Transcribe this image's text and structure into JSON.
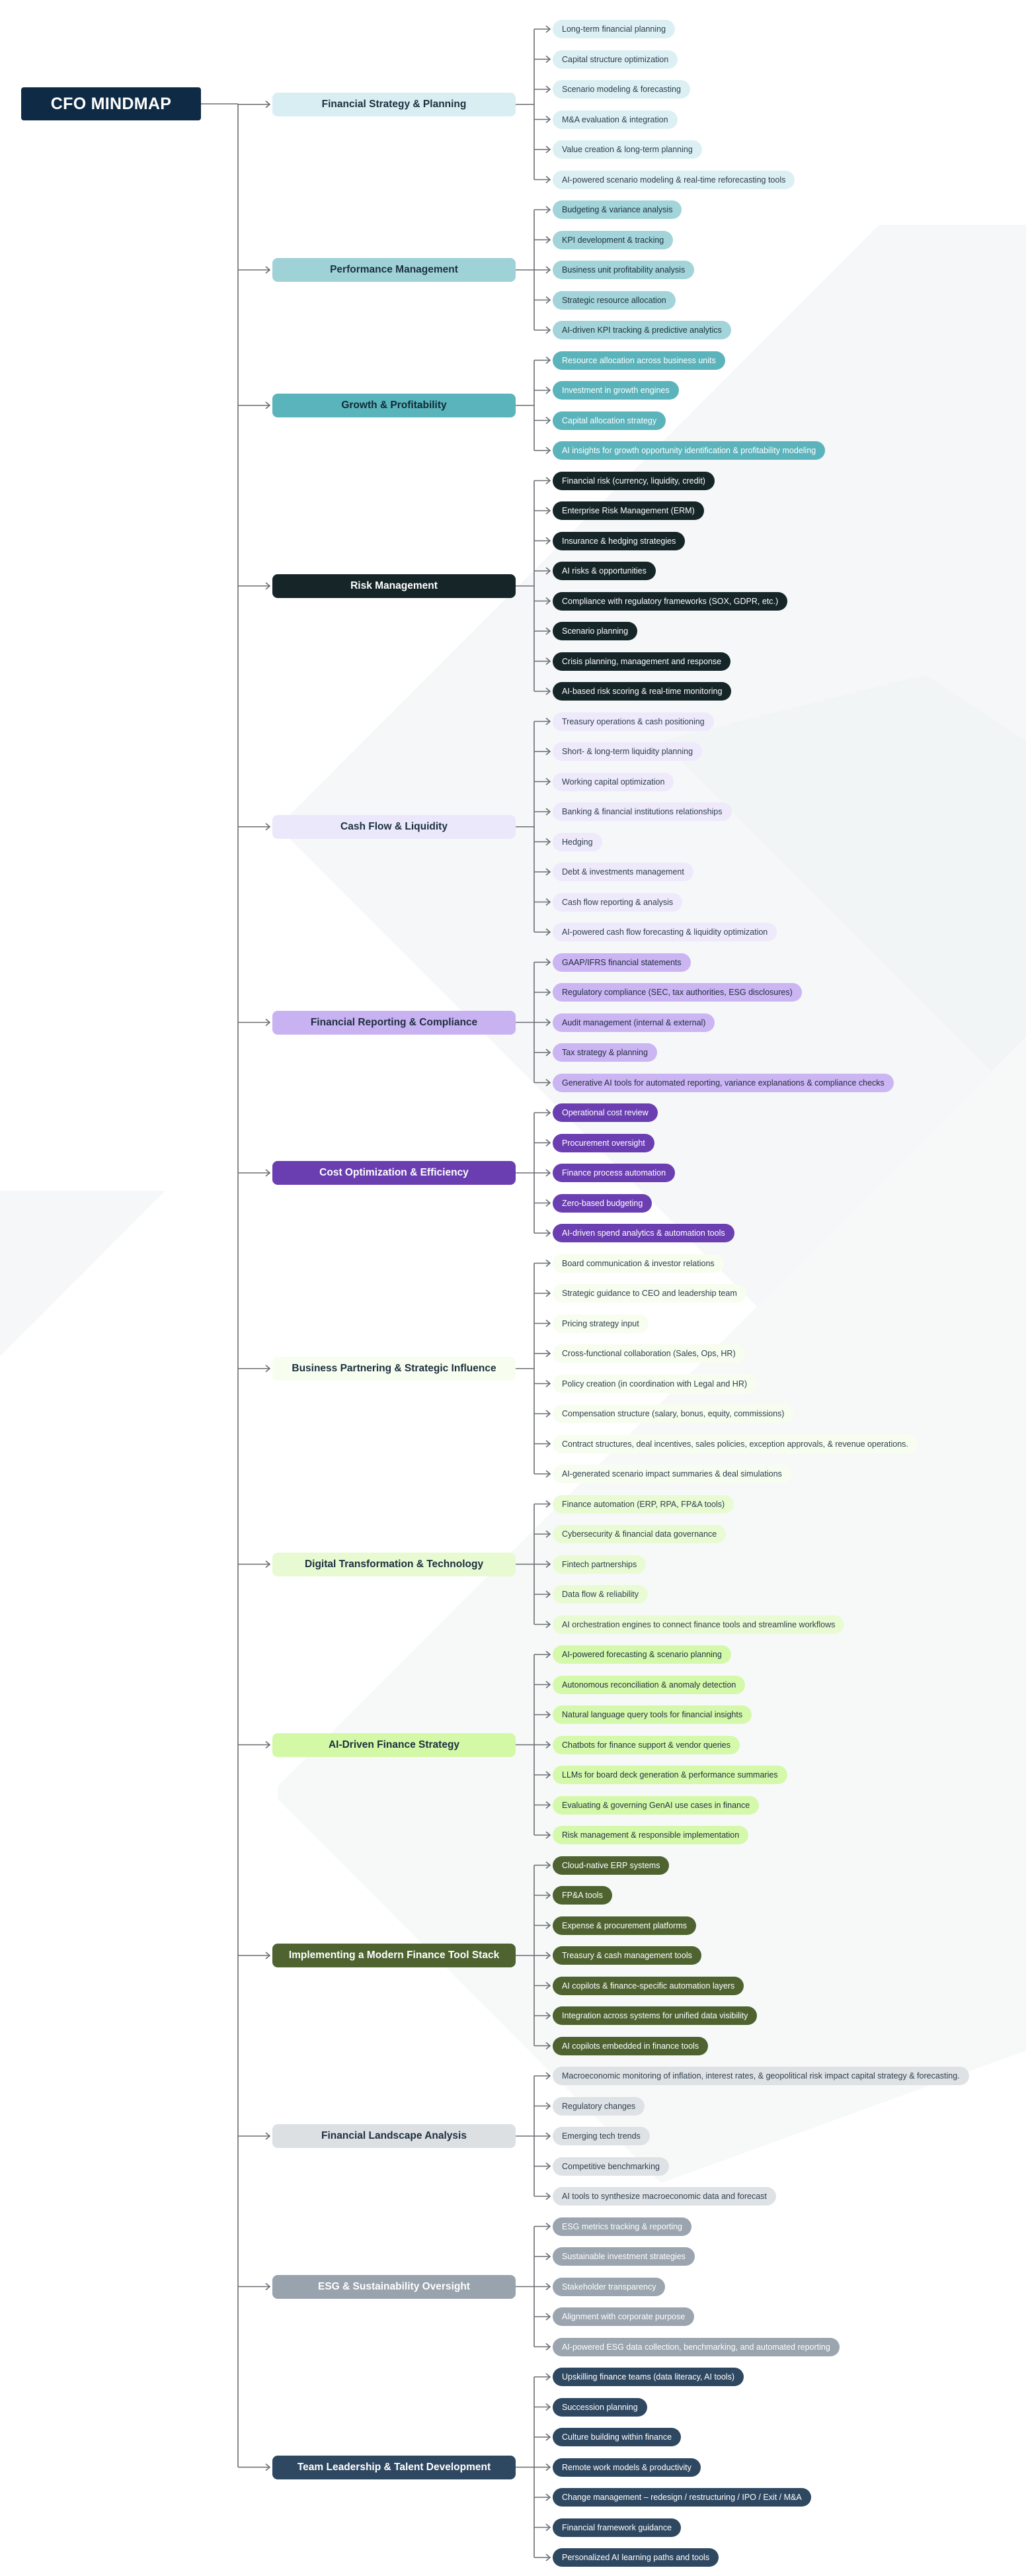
{
  "title": "CFO MINDMAP",
  "branches": [
    {
      "label": "Financial Strategy & Planning",
      "bg": "#d9eef3",
      "fg": "#1c2f3f",
      "ibg": "#dcf0f4",
      "ifg": "#2d3e4e",
      "items": [
        "Long-term financial planning",
        "Capital structure optimization",
        "Scenario modeling & forecasting",
        "M&A evaluation & integration",
        "Value creation & long-term planning",
        "AI-powered scenario modeling & real-time reforecasting tools"
      ]
    },
    {
      "label": "Performance Management",
      "bg": "#9fd2d7",
      "fg": "#1c2f3f",
      "ibg": "#a2d4d9",
      "ifg": "#1f3240",
      "items": [
        "Budgeting & variance analysis",
        "KPI development & tracking",
        "Business unit profitability analysis",
        "Strategic resource allocation",
        "AI-driven KPI tracking & predictive analytics"
      ]
    },
    {
      "label": "Growth & Profitability",
      "bg": "#5ab4bc",
      "fg": "#102a35",
      "ibg": "#5bb4bc",
      "ifg": "#ffffff",
      "items": [
        "Resource allocation across business units",
        "Investment in growth engines",
        "Capital allocation strategy",
        "AI insights for growth opportunity identification & profitability modeling"
      ]
    },
    {
      "label": "Risk Management",
      "bg": "#152528",
      "fg": "#ffffff",
      "ibg": "#152528",
      "ifg": "#ffffff",
      "items": [
        "Financial risk (currency, liquidity, credit)",
        "Enterprise Risk Management (ERM)",
        "Insurance & hedging strategies",
        "AI risks & opportunities",
        "Compliance with regulatory frameworks (SOX, GDPR, etc.)",
        "Scenario planning",
        "Crisis planning, management and response",
        "AI-based risk scoring & real-time monitoring"
      ]
    },
    {
      "label": "Cash Flow & Liquidity",
      "bg": "#ece8fb",
      "fg": "#1c2f3f",
      "ibg": "#eeeafb",
      "ifg": "#2d3e4e",
      "items": [
        "Treasury operations & cash positioning",
        "Short- & long-term liquidity planning",
        "Working capital optimization",
        "Banking & financial institutions relationships",
        "Hedging",
        "Debt & investments management",
        "Cash flow reporting & analysis",
        "AI-powered cash flow forecasting & liquidity optimization"
      ]
    },
    {
      "label": "Financial Reporting & Compliance",
      "bg": "#c9b2f2",
      "fg": "#1c2f3f",
      "ibg": "#cbb5f3",
      "ifg": "#1f2d3f",
      "items": [
        "GAAP/IFRS financial statements",
        "Regulatory compliance (SEC, tax authorities, ESG disclosures)",
        "Audit management (internal & external)",
        "Tax strategy & planning",
        "Generative AI tools for automated reporting, variance explanations & compliance checks"
      ]
    },
    {
      "label": "Cost Optimization & Efficiency",
      "bg": "#6a3eb0",
      "fg": "#ffffff",
      "ibg": "#6b3fb1",
      "ifg": "#ffffff",
      "items": [
        "Operational cost review",
        "Procurement oversight",
        "Finance process automation",
        "Zero-based budgeting",
        "AI-driven spend analytics & automation tools"
      ]
    },
    {
      "label": "Business Partnering & Strategic Influence",
      "bg": "#f7fdef",
      "fg": "#1c2f3f",
      "ibg": "#f7fdef",
      "ifg": "#2d3e4e",
      "items": [
        "Board communication & investor relations",
        "Strategic guidance to CEO and leadership team",
        "Pricing strategy input",
        "Cross-functional collaboration (Sales, Ops, HR)",
        "Policy creation (in coordination with Legal and HR)",
        "Compensation structure (salary, bonus, equity, commissions)",
        "Contract structures, deal incentives, sales policies, exception approvals, & revenue operations.",
        "AI-generated scenario impact summaries & deal simulations"
      ]
    },
    {
      "label": "Digital Transformation & Technology",
      "bg": "#e8fad1",
      "fg": "#1c2f3f",
      "ibg": "#e9fbd3",
      "ifg": "#2d3e4e",
      "items": [
        "Finance automation (ERP, RPA, FP&A tools)",
        "Cybersecurity & financial data governance",
        "Fintech partnerships",
        "Data flow & reliability",
        "AI orchestration engines to connect finance tools and streamline workflows"
      ]
    },
    {
      "label": "AI-Driven Finance Strategy",
      "bg": "#d3f9a6",
      "fg": "#1c2f3f",
      "ibg": "#d5f9aa",
      "ifg": "#1f3240",
      "items": [
        "AI-powered forecasting & scenario planning",
        "Autonomous reconciliation & anomaly detection",
        "Natural language query tools for financial insights",
        "Chatbots for finance support & vendor queries",
        "LLMs for board deck generation & performance summaries",
        "Evaluating & governing GenAI use cases in finance",
        "Risk management & responsible implementation"
      ]
    },
    {
      "label": "Implementing a Modern Finance Tool Stack",
      "bg": "#4e6330",
      "fg": "#ffffff",
      "ibg": "#4e6330",
      "ifg": "#ffffff",
      "items": [
        "Cloud-native ERP systems",
        "FP&A tools",
        "Expense & procurement platforms",
        "Treasury & cash management tools",
        "AI copilots & finance-specific automation layers",
        "Integration across systems for unified data visibility",
        "AI copilots embedded in finance tools"
      ]
    },
    {
      "label": "Financial Landscape Analysis",
      "bg": "#dde0e3",
      "fg": "#1c2f3f",
      "ibg": "#dfe2e5",
      "ifg": "#2d3e4e",
      "items": [
        "Macroeconomic monitoring of inflation, interest rates, & geopolitical risk impact capital strategy & forecasting.",
        "Regulatory changes",
        "Emerging tech trends",
        "Competitive benchmarking",
        "AI tools to synthesize macroeconomic data and forecast"
      ]
    },
    {
      "label": "ESG & Sustainability Oversight",
      "bg": "#98a3ad",
      "fg": "#ffffff",
      "ibg": "#9aa5af",
      "ifg": "#ffffff",
      "items": [
        "ESG metrics tracking & reporting",
        "Sustainable investment strategies",
        "Stakeholder transparency",
        "Alignment with corporate purpose",
        "AI-powered ESG data collection, benchmarking, and automated reporting"
      ]
    },
    {
      "label": "Team Leadership & Talent Development",
      "bg": "#2f4861",
      "fg": "#ffffff",
      "ibg": "#2f4861",
      "ifg": "#ffffff",
      "items": [
        "Upskilling finance teams (data literacy, AI tools)",
        "Succession planning",
        "Culture building within finance",
        "Remote work models & productivity",
        "Change management – redesign / restructuring / IPO / Exit / M&A",
        "Financial framework guidance",
        "Personalized AI learning paths and tools"
      ]
    }
  ]
}
